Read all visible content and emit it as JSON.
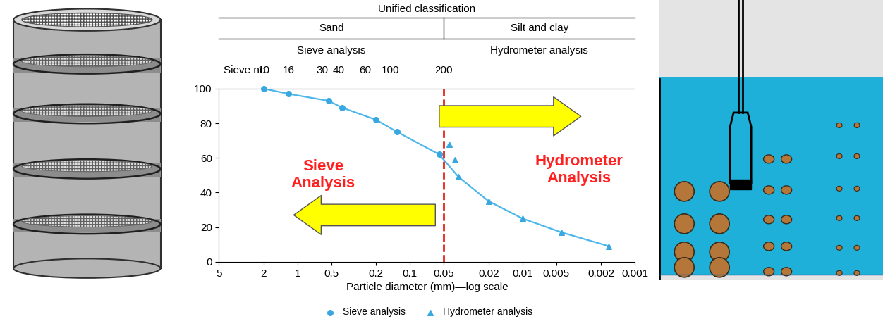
{
  "chart_data": {
    "type": "line",
    "header": {
      "title": "Unified classification",
      "left": "Sand",
      "right": "Silt and clay",
      "left_method": "Sieve analysis",
      "right_method": "Hydrometer analysis"
    },
    "sieve_numbers": {
      "label": "Sieve no.",
      "ticks": [
        {
          "value": 2,
          "label": "10"
        },
        {
          "value": 1.2,
          "label": "16"
        },
        {
          "value": 0.6,
          "label": "30"
        },
        {
          "value": 0.43,
          "label": "40"
        },
        {
          "value": 0.25,
          "label": "60"
        },
        {
          "value": 0.15,
          "label": "100"
        },
        {
          "value": 0.05,
          "label": "200"
        }
      ]
    },
    "x_label": "Particle diameter (mm)—log scale",
    "log": "x",
    "xlim": [
      5,
      0.001
    ],
    "xticks": [
      5,
      2,
      1,
      0.5,
      0.2,
      0.1,
      0.05,
      0.02,
      0.01,
      0.005,
      0.002,
      0.001
    ],
    "ylim": [
      0,
      100
    ],
    "yticks": [
      0,
      20,
      40,
      60,
      80,
      100
    ],
    "legend": "bottom",
    "boundary": {
      "value": 0.05,
      "color": "#e8201a",
      "line_style": "dashed"
    },
    "series": [
      {
        "name": "Sieve analysis",
        "type": "scatter",
        "marker": "circle",
        "color": "#3aa8e0",
        "x": [
          2,
          1.2,
          0.53,
          0.4,
          0.2,
          0.13,
          0.055
        ],
        "values": [
          100,
          97,
          93,
          89,
          82,
          75,
          62
        ]
      },
      {
        "name": "Hydrometer analysis",
        "type": "scatter",
        "marker": "triangle",
        "color": "#3aa8e0",
        "x": [
          0.045,
          0.04,
          0.037,
          0.02,
          0.01,
          0.0045,
          0.0017
        ],
        "values": [
          68,
          59,
          49,
          35,
          25,
          17,
          9
        ]
      }
    ],
    "curve": {
      "color": "#4db6ea",
      "line_style": "solid",
      "x": [
        2,
        1.2,
        0.53,
        0.4,
        0.2,
        0.13,
        0.055,
        0.037,
        0.02,
        0.01,
        0.0045,
        0.0017
      ],
      "values": [
        100,
        97,
        93,
        89,
        82,
        75,
        62,
        49,
        35,
        25,
        17,
        9
      ]
    },
    "annotations": [
      {
        "text": "Sieve\nAnalysis",
        "color": "#ff2020"
      },
      {
        "text": "Hydrometer\nAnalysis",
        "color": "#ff2020"
      }
    ]
  }
}
